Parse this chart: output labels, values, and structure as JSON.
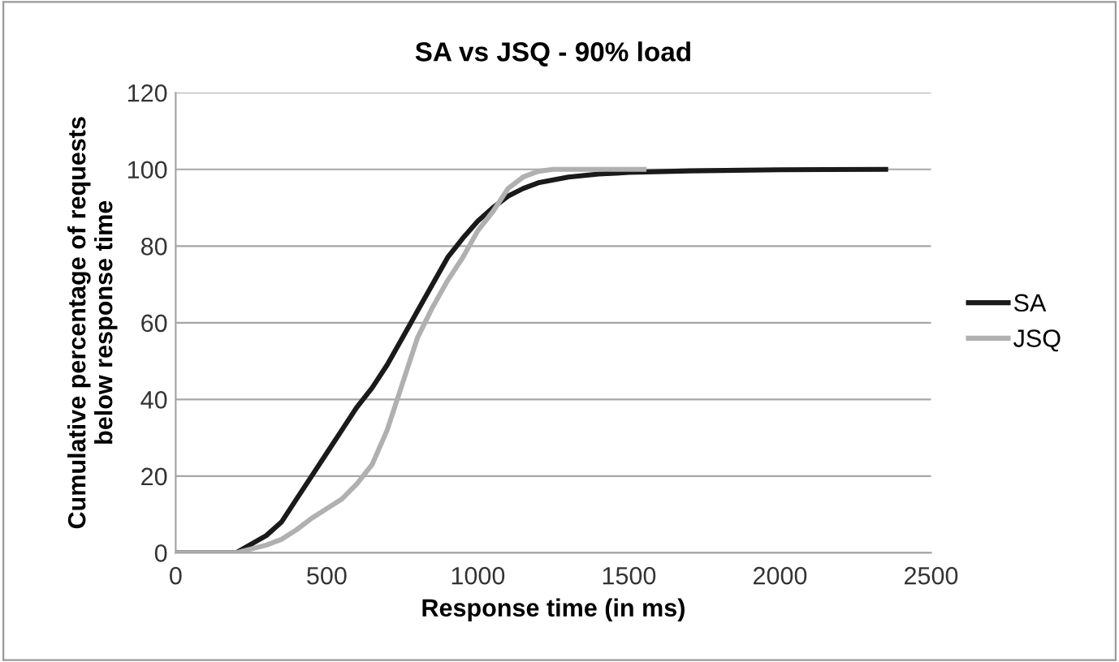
{
  "chart_data": {
    "type": "line",
    "title": "SA vs JSQ - 90% load",
    "xlabel": "Response time (in ms)",
    "ylabel": "Cumulative percentage of requests\nbelow response time",
    "xlim": [
      0,
      2500
    ],
    "xticks": [
      0,
      500,
      1000,
      1500,
      2000,
      2500
    ],
    "ylim": [
      0,
      120
    ],
    "yticks": [
      0,
      20,
      40,
      60,
      80,
      100,
      120
    ],
    "grid": "y",
    "legend": "right",
    "marker": "none",
    "line_style": "solid",
    "series": [
      {
        "name": "SA",
        "color": "#1a1a1a",
        "x": [
          0,
          200,
          300,
          350,
          400,
          450,
          500,
          550,
          600,
          650,
          700,
          750,
          800,
          850,
          900,
          950,
          1000,
          1050,
          1100,
          1150,
          1200,
          1300,
          1400,
          1500,
          1700,
          2000,
          2350
        ],
        "values": [
          0,
          0,
          4.5,
          8,
          14,
          20,
          26,
          32,
          38,
          43,
          49,
          56,
          63,
          70,
          77,
          82,
          86.5,
          90,
          93,
          95,
          96.5,
          98,
          98.8,
          99.2,
          99.6,
          99.9,
          100
        ]
      },
      {
        "name": "JSQ",
        "color": "#b0b0b0",
        "x": [
          0,
          200,
          300,
          350,
          400,
          450,
          500,
          550,
          600,
          650,
          700,
          750,
          800,
          850,
          900,
          950,
          1000,
          1050,
          1100,
          1150,
          1200,
          1250,
          1550
        ],
        "values": [
          0,
          0,
          2,
          3.5,
          6,
          9,
          11.5,
          14,
          18,
          23,
          32,
          44,
          56,
          64,
          71,
          77,
          84,
          89,
          95,
          98,
          99.5,
          100,
          100
        ]
      }
    ]
  }
}
